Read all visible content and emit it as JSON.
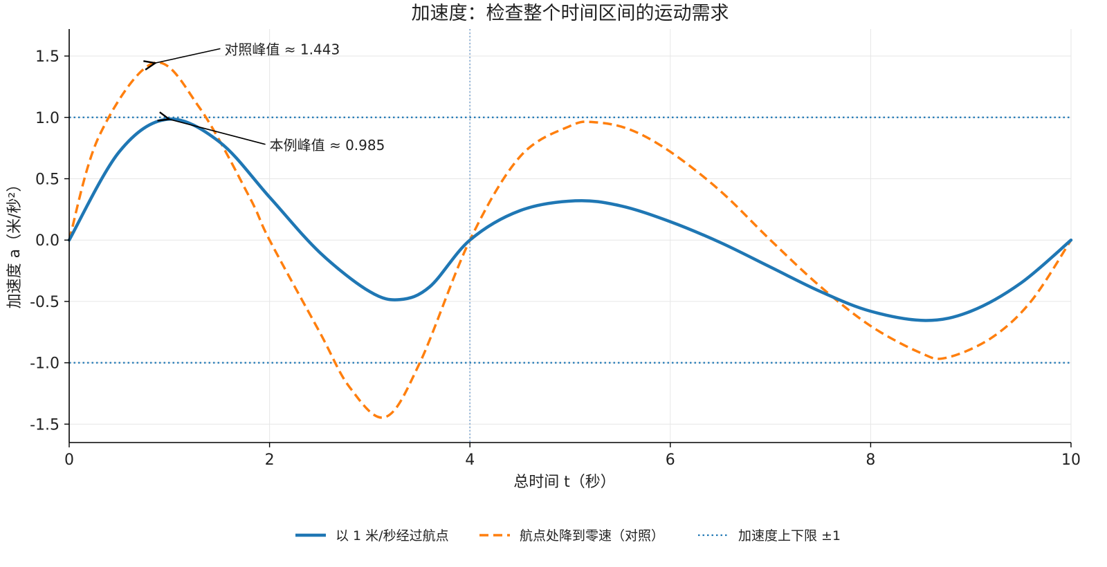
{
  "chart_data": {
    "type": "line",
    "title": "加速度：检查整个时间区间的运动需求",
    "xlabel": "总时间 t（秒）",
    "ylabel": "加速度 a（米/秒²）",
    "xlim": [
      0,
      10
    ],
    "ylim": [
      -1.65,
      1.72
    ],
    "x_ticks": [
      0,
      2,
      4,
      6,
      8,
      10
    ],
    "x_tick_labels": [
      "0",
      "2",
      "4",
      "6",
      "8",
      "10"
    ],
    "y_ticks": [
      1.5,
      1.0,
      0.5,
      0.0,
      -0.5,
      -1.0,
      -1.5
    ],
    "y_tick_labels": [
      "1.5",
      "1.0",
      "0.5",
      "0.0",
      "-0.5",
      "-1.0",
      "-1.5"
    ],
    "grid": true,
    "legend_position": "bottom-center",
    "vertical_marker_x": 4,
    "series": [
      {
        "name": "以 1 米/秒经过航点",
        "style": "solid",
        "color": "#1f77b4",
        "x": [
          0,
          0.5,
          0.985,
          1.5,
          2.0,
          2.5,
          3.0,
          3.3,
          3.6,
          4.0,
          4.5,
          5.05,
          5.5,
          6.0,
          6.5,
          7.0,
          7.5,
          8.0,
          8.55,
          9.0,
          9.5,
          10.0
        ],
        "y": [
          0.0,
          0.72,
          0.985,
          0.8,
          0.35,
          -0.1,
          -0.42,
          -0.485,
          -0.38,
          0.0,
          0.24,
          0.32,
          0.28,
          0.15,
          -0.02,
          -0.22,
          -0.42,
          -0.58,
          -0.655,
          -0.58,
          -0.35,
          0.0
        ]
      },
      {
        "name": "航点处降到零速（对照）",
        "style": "dashed",
        "color": "#ff7f0e",
        "x": [
          0,
          0.3,
          0.845,
          1.3,
          1.8,
          2.0,
          2.5,
          2.8,
          3.155,
          3.5,
          4.0,
          4.5,
          5.0,
          5.25,
          5.6,
          6.0,
          6.5,
          7.0,
          7.5,
          8.0,
          8.5,
          8.75,
          9.2,
          9.6,
          10.0
        ],
        "y": [
          0.0,
          0.85,
          1.443,
          1.08,
          0.35,
          0.0,
          -0.75,
          -1.2,
          -1.443,
          -1.0,
          0.0,
          0.68,
          0.93,
          0.96,
          0.9,
          0.72,
          0.4,
          0.0,
          -0.38,
          -0.7,
          -0.92,
          -0.96,
          -0.8,
          -0.5,
          0.0
        ]
      },
      {
        "name": "加速度上下限 ±1",
        "style": "dotted",
        "color": "#1f77b4",
        "x": [
          0,
          10
        ],
        "y_values": [
          1.0,
          -1.0
        ]
      }
    ],
    "annotations": [
      {
        "text": "对照峰值 ≈ 1.443",
        "target_x": 0.845,
        "target_y": 1.443,
        "text_x": 1.55,
        "text_y": 1.515
      },
      {
        "text": "本例峰值 ≈ 0.985",
        "target_x": 0.985,
        "target_y": 0.985,
        "text_x": 2.0,
        "text_y": 0.735
      }
    ]
  }
}
